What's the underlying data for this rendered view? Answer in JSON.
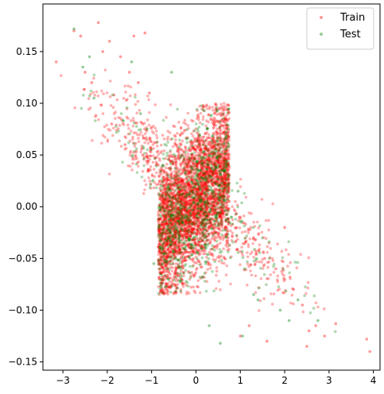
{
  "chart_data": {
    "type": "scatter",
    "title": "",
    "xlabel": "",
    "ylabel": "",
    "xlim": [
      -3.45,
      4.15
    ],
    "ylim": [
      -0.158,
      0.196
    ],
    "x_ticks": [
      -3,
      -2,
      -1,
      0,
      1,
      2,
      3,
      4
    ],
    "x_tick_labels": [
      "−3",
      "−2",
      "−1",
      "0",
      "1",
      "2",
      "3",
      "4"
    ],
    "y_ticks": [
      -0.15,
      -0.1,
      -0.05,
      0.0,
      0.05,
      0.1,
      0.15
    ],
    "y_tick_labels": [
      "−0.15",
      "−0.10",
      "−0.05",
      "0.00",
      "0.05",
      "0.10",
      "0.15"
    ],
    "grid": false,
    "legend_position": "top-right",
    "series": [
      {
        "name": "Train",
        "color": "#ff0000",
        "alpha": 0.3,
        "approx_point_count": 4000,
        "dense_block": {
          "x_range": [
            -0.85,
            0.75
          ],
          "y_range": [
            -0.085,
            0.1
          ]
        },
        "tail_sample": [
          [
            -3.15,
            0.14
          ],
          [
            -2.75,
            0.17
          ],
          [
            -2.6,
            0.165
          ],
          [
            -2.5,
            0.13
          ],
          [
            -2.35,
            0.12
          ],
          [
            -2.2,
            0.178
          ],
          [
            -2.1,
            0.15
          ],
          [
            -1.95,
            0.16
          ],
          [
            -1.85,
            0.108
          ],
          [
            -1.7,
            0.145
          ],
          [
            -1.5,
            0.13
          ],
          [
            -1.4,
            0.165
          ],
          [
            -1.3,
            0.12
          ],
          [
            -1.15,
            0.168
          ],
          [
            -1.05,
            0.11
          ],
          [
            -1.9,
            0.08
          ],
          [
            -1.6,
            0.06
          ],
          [
            -1.2,
            0.05
          ],
          [
            1.0,
            -0.01
          ],
          [
            1.3,
            -0.03
          ],
          [
            1.55,
            -0.05
          ],
          [
            1.8,
            -0.06
          ],
          [
            2.0,
            -0.02
          ],
          [
            2.2,
            -0.08
          ],
          [
            2.4,
            -0.095
          ],
          [
            2.55,
            -0.12
          ],
          [
            2.7,
            -0.115
          ],
          [
            2.9,
            -0.125
          ],
          [
            3.15,
            -0.113
          ],
          [
            3.85,
            -0.128
          ],
          [
            3.92,
            -0.14
          ],
          [
            1.2,
            -0.115
          ],
          [
            1.6,
            -0.13
          ],
          [
            2.5,
            -0.135
          ],
          [
            1.0,
            -0.125
          ]
        ]
      },
      {
        "name": "Test",
        "color": "#008000",
        "alpha": 0.3,
        "approx_point_count": 1000,
        "dense_block": {
          "x_range": [
            -0.85,
            0.75
          ],
          "y_range": [
            -0.085,
            0.1
          ]
        },
        "tail_sample": [
          [
            -2.75,
            0.172
          ],
          [
            -2.4,
            0.145
          ],
          [
            -2.55,
            0.135
          ],
          [
            -2.3,
            0.105
          ],
          [
            -1.45,
            0.14
          ],
          [
            -1.25,
            0.09
          ],
          [
            -1.1,
            0.075
          ],
          [
            1.1,
            -0.06
          ],
          [
            1.4,
            -0.09
          ],
          [
            1.9,
            -0.1
          ],
          [
            2.1,
            -0.11
          ],
          [
            2.75,
            -0.11
          ],
          [
            0.55,
            -0.132
          ],
          [
            1.05,
            -0.125
          ],
          [
            0.3,
            -0.115
          ],
          [
            -0.95,
            -0.055
          ],
          [
            0.95,
            0.015
          ],
          [
            1.3,
            -0.085
          ],
          [
            2.3,
            -0.09
          ],
          [
            -0.55,
            0.13
          ]
        ]
      }
    ]
  }
}
